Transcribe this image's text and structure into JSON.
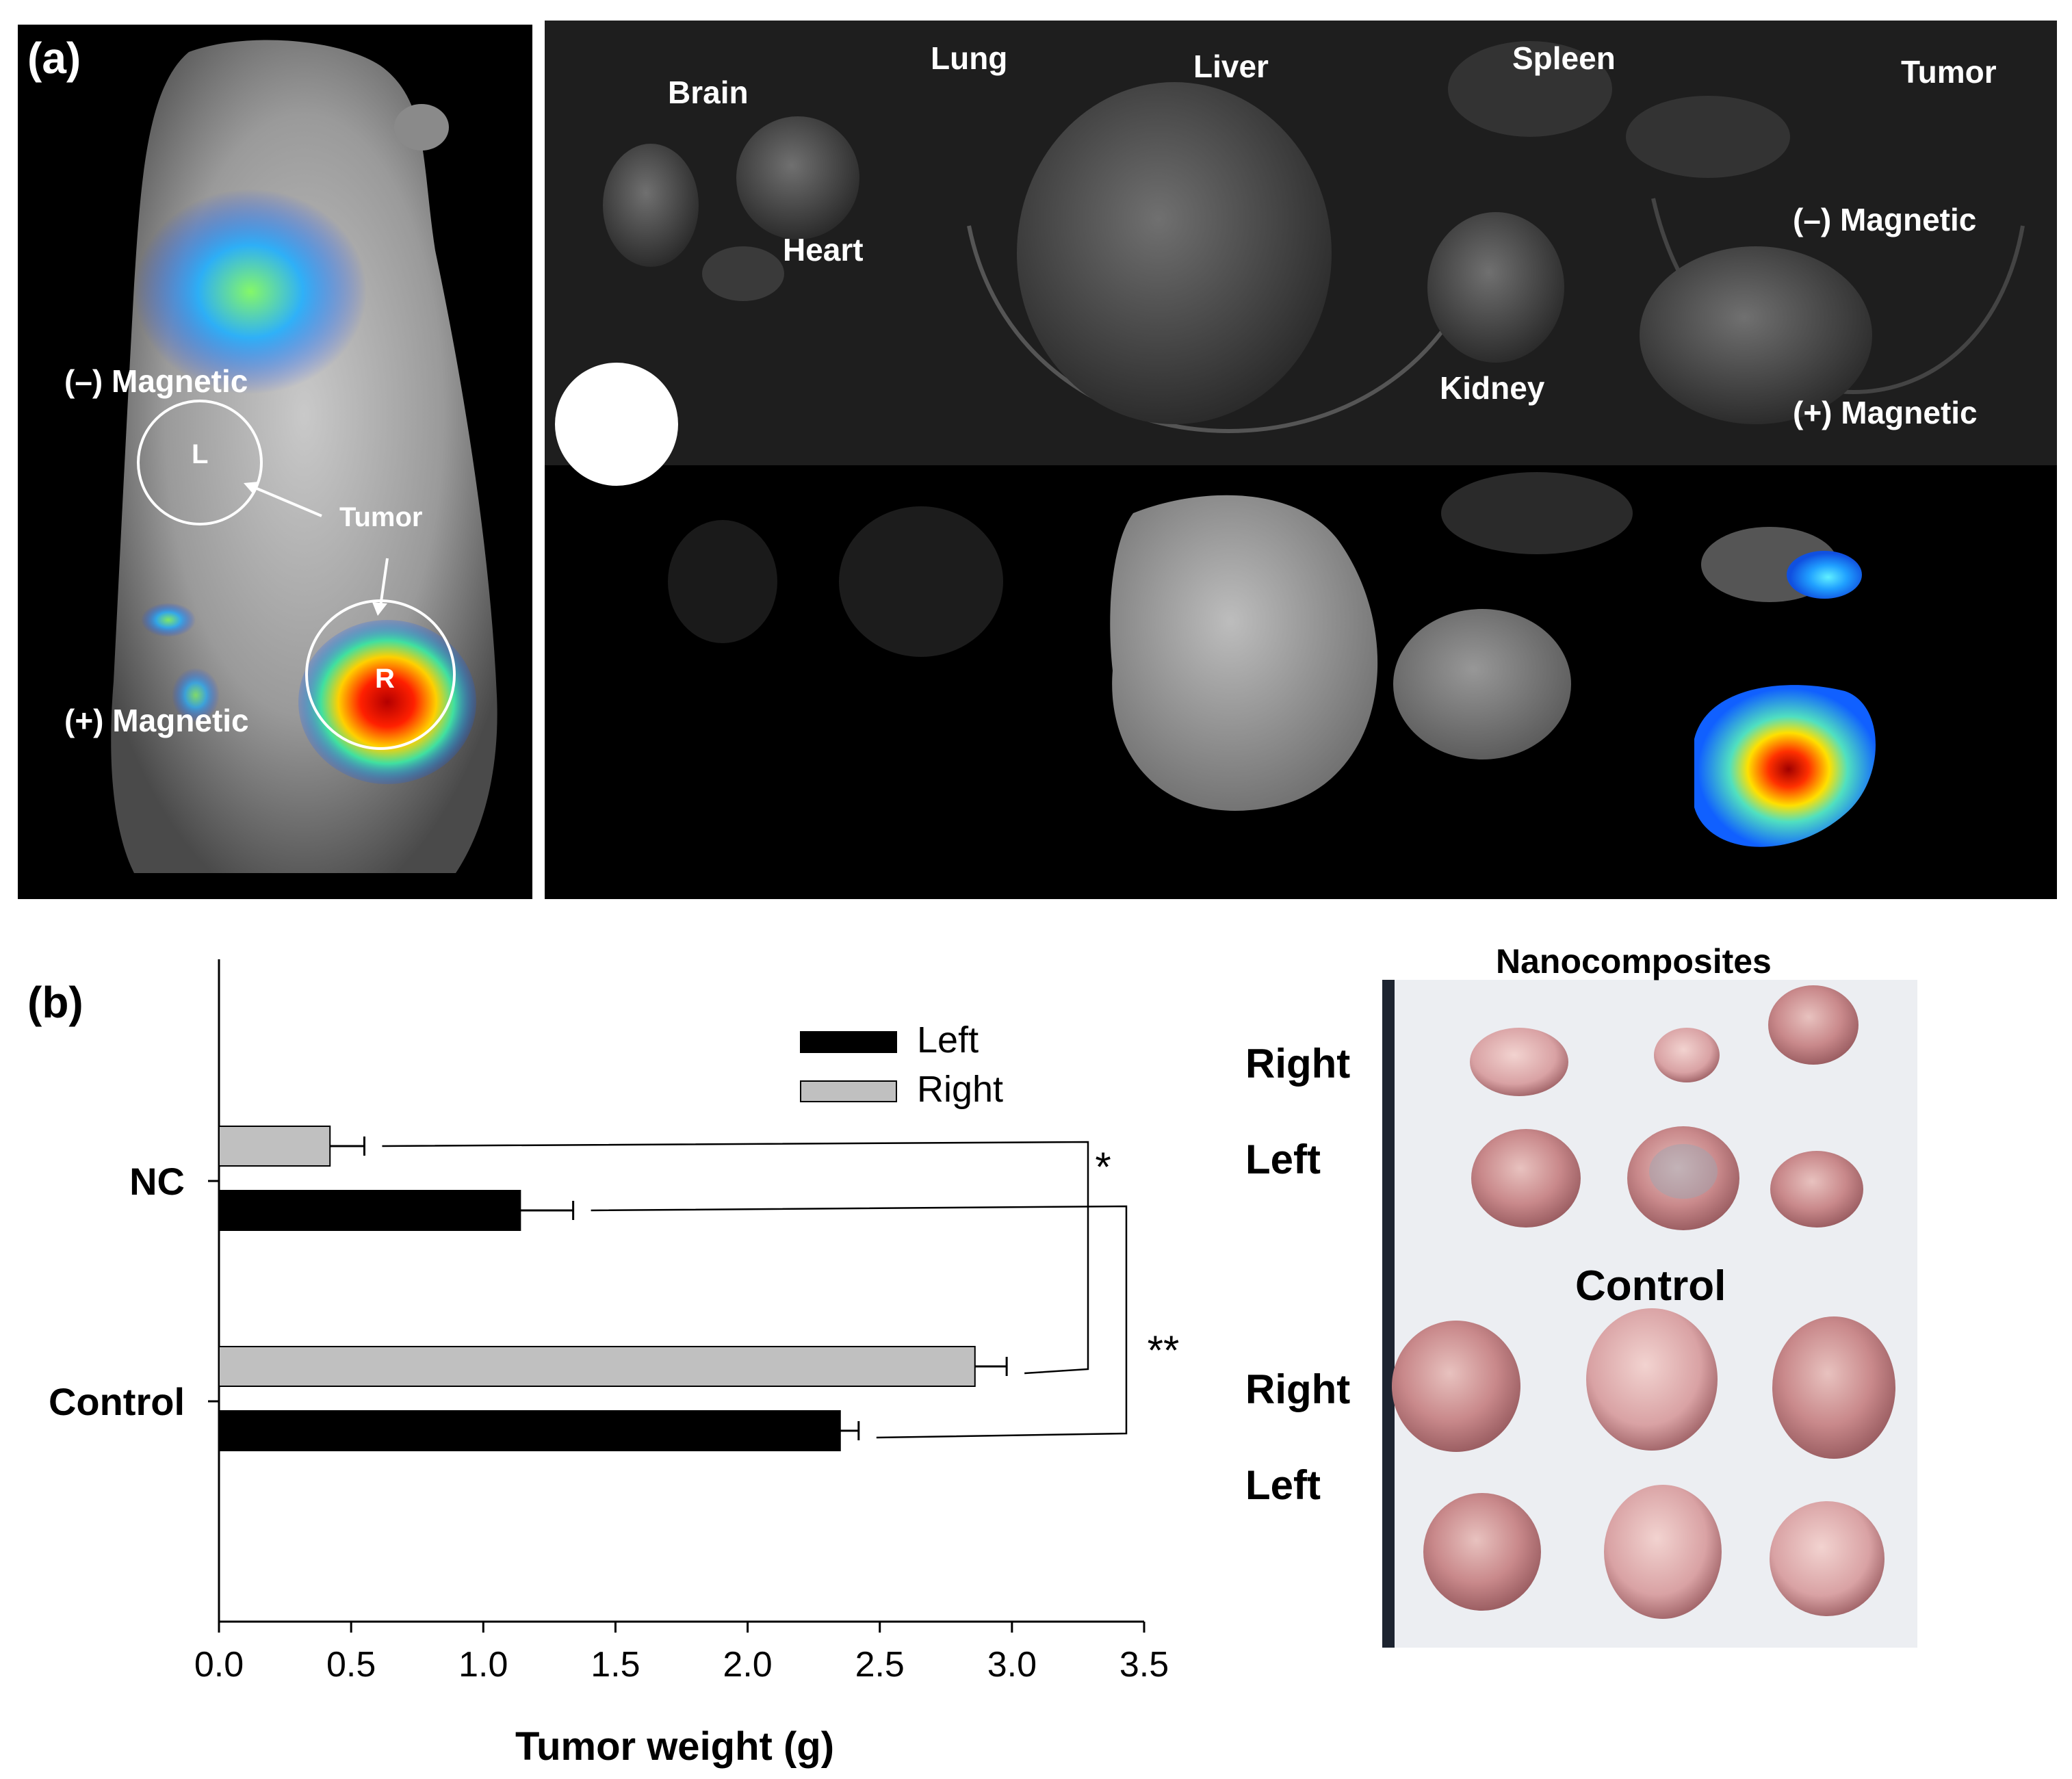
{
  "colors": {
    "left_bar": "#000000",
    "right_bar": "#c0c0c0",
    "background_dark": "#000000",
    "tumor_photo_bg": "#ecedf0",
    "tissue_pink": "#c98a8c"
  },
  "panel_a": {
    "label": "(a)",
    "mouse": {
      "minus_magnetic": "(–) Magnetic",
      "plus_magnetic": "(+) Magnetic",
      "tumor": "Tumor",
      "circle_left": "L",
      "circle_right": "R"
    },
    "organs": {
      "brain": "Brain",
      "lung": "Lung",
      "liver": "Liver",
      "spleen": "Spleen",
      "tumor": "Tumor",
      "heart": "Heart",
      "kidney": "Kidney",
      "minus_magnetic": "(–) Magnetic",
      "plus_magnetic": "(+) Magnetic"
    }
  },
  "panel_b": {
    "label": "(b)",
    "photo": {
      "title_nc": "Nanocomposites",
      "title_control": "Control",
      "row_right_1": "Right",
      "row_left_1": "Left",
      "row_right_2": "Right",
      "row_left_2": "Left"
    }
  },
  "chart_data": {
    "type": "bar",
    "orientation": "horizontal",
    "categories": [
      "NC",
      "Control"
    ],
    "series": [
      {
        "name": "Left",
        "values": [
          1.14,
          2.35
        ],
        "errors": [
          0.2,
          0.07
        ]
      },
      {
        "name": "Right",
        "values": [
          0.42,
          2.86
        ],
        "errors": [
          0.13,
          0.12
        ]
      }
    ],
    "xlabel": "Tumor weight (g)",
    "xlim": [
      0,
      3.5
    ],
    "xticks": [
      "0.0",
      "0.5",
      "1.0",
      "1.5",
      "2.0",
      "2.5",
      "3.0",
      "3.5"
    ],
    "legend": "top-right",
    "significance": [
      "*",
      "**"
    ]
  }
}
